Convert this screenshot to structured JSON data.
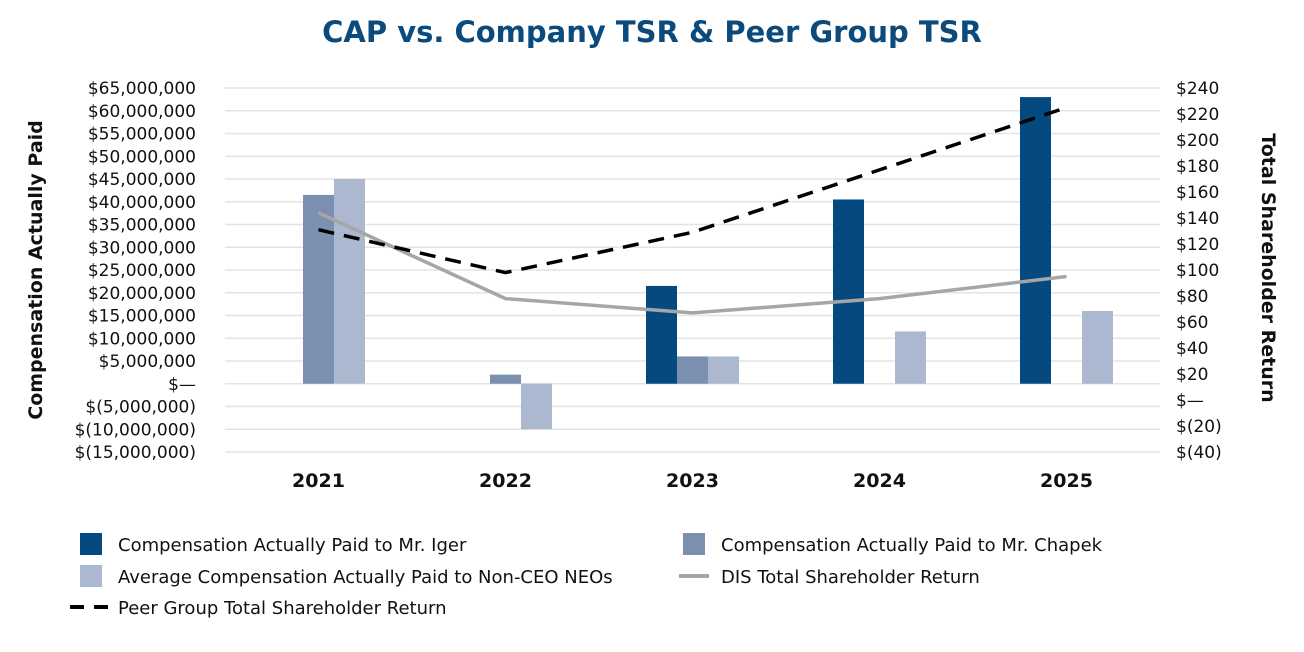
{
  "chart_data": {
    "type": "bar",
    "title": "CAP vs. Company TSR & Peer Group TSR",
    "xlabel": "",
    "ylabel": "Compensation Actually Paid",
    "y2label": "Total Shareholder Return",
    "categories": [
      "2021",
      "2022",
      "2023",
      "2024",
      "2025"
    ],
    "ylim": [
      -15000000,
      65000000
    ],
    "y2lim": [
      -40,
      240
    ],
    "yticks": [
      "$65,000,000",
      "$60,000,000",
      "$55,000,000",
      "$50,000,000",
      "$45,000,000",
      "$40,000,000",
      "$35,000,000",
      "$30,000,000",
      "$25,000,000",
      "$20,000,000",
      "$15,000,000",
      "$10,000,000",
      "$5,000,000",
      "$—",
      "$(5,000,000)",
      "$(10,000,000)",
      "$(15,000,000)"
    ],
    "y2ticks": [
      "$240",
      "$220",
      "$200",
      "$180",
      "$160",
      "$140",
      "$120",
      "$100",
      "$80",
      "$60",
      "$40",
      "$20",
      "$—",
      "$(20)",
      "$(40)"
    ],
    "grid": true,
    "legend_position": "bottom",
    "bar_series": [
      {
        "name": "Compensation Actually Paid to Mr. Iger",
        "color": "#044a80",
        "values": [
          null,
          null,
          21500000,
          40500000,
          63000000
        ]
      },
      {
        "name": "Compensation Actually Paid to Mr. Chapek",
        "color": "#7b8fb0",
        "values": [
          41500000,
          2000000,
          6000000,
          null,
          null
        ]
      },
      {
        "name": "Average Compensation Actually Paid to Non-CEO NEOs",
        "color": "#acb7d0",
        "values": [
          45000000,
          -10000000,
          6000000,
          11500000,
          16000000
        ]
      }
    ],
    "line_series": [
      {
        "name": "DIS Total Shareholder Return",
        "color": "#a6a6a6",
        "dash": false,
        "values": [
          144,
          78,
          67,
          78,
          95
        ]
      },
      {
        "name": "Peer Group Total Shareholder Return",
        "color": "#000000",
        "dash": true,
        "values": [
          131,
          98,
          129,
          177,
          225
        ]
      }
    ]
  }
}
